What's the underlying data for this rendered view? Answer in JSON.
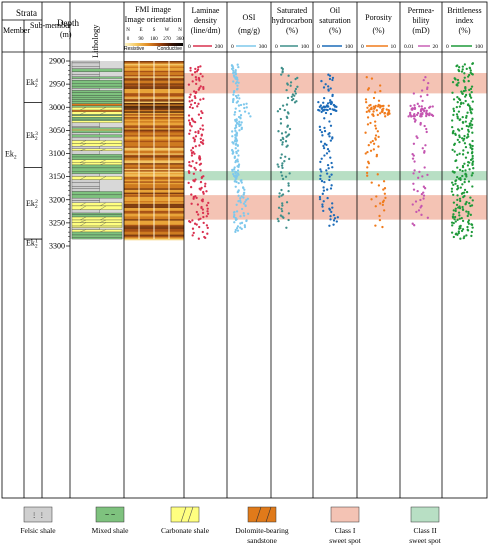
{
  "header": {
    "strata": "Strata",
    "member": "Member",
    "submember": "Sub-member",
    "depth": "Depth",
    "depth_unit": "(m)",
    "lithology": "Lithology",
    "fmi_title": "FMI image",
    "fmi_subtitle": "Image orientation",
    "fmi_dirs": [
      "N",
      "E",
      "S",
      "W",
      "N"
    ],
    "fmi_angles": [
      "0",
      "90",
      "180",
      "270",
      "360"
    ],
    "fmi_resistive": "Resistive",
    "fmi_conductive": "Conductive"
  },
  "tracks": [
    {
      "id": "laminae",
      "label": "Laminae",
      "label2": "density",
      "unit": "(line/dm)",
      "min": "0",
      "max": "200",
      "color": "#d9304f"
    },
    {
      "id": "osi",
      "label": "OSI",
      "label2": "",
      "unit": "(mg/g)",
      "min": "0",
      "max": "300",
      "color": "#7ec8ec"
    },
    {
      "id": "sat_hc",
      "label": "Saturated",
      "label2": "hydrocarbon",
      "unit": "(%)",
      "min": "0",
      "max": "100",
      "color": "#3f8f8a"
    },
    {
      "id": "oil_sat",
      "label": "Oil",
      "label2": "saturation",
      "unit": "(%)",
      "min": "0",
      "max": "100",
      "color": "#1c6bb8"
    },
    {
      "id": "porosity",
      "label": "Porosity",
      "label2": "",
      "unit": "(%)",
      "min": "0",
      "max": "10",
      "color": "#f07b1c"
    },
    {
      "id": "perm",
      "label": "Permea-",
      "label2": "bility",
      "unit": "(mD)",
      "min": "0.01",
      "max": "20",
      "color": "#c455b0"
    },
    {
      "id": "brittle",
      "label": "Brittleness",
      "label2": "index",
      "unit": "(%)",
      "min": "0",
      "max": "100",
      "color": "#1f9a3a"
    }
  ],
  "depth_ticks": [
    "2900",
    "2950",
    "3000",
    "3050",
    "3100",
    "3150",
    "3200",
    "3250",
    "3300"
  ],
  "member_label": "Ek",
  "member_sub": "2",
  "submembers": [
    {
      "label": "Ek",
      "sub": "2",
      "sup": "4",
      "top": 2900,
      "bottom": 2990
    },
    {
      "label": "Ek",
      "sub": "2",
      "sup": "3",
      "top": 2990,
      "bottom": 3130
    },
    {
      "label": "Ek",
      "sub": "2",
      "sup": "2",
      "top": 3130,
      "bottom": 3285
    },
    {
      "label": "Ek",
      "sub": "2",
      "sup": "1",
      "top": 3285,
      "bottom": 3305
    }
  ],
  "sweet_spots": [
    {
      "class": "I",
      "top": 2926,
      "bottom": 2970
    },
    {
      "class": "II",
      "top": 3138,
      "bottom": 3158
    },
    {
      "class": "I",
      "top": 3190,
      "bottom": 3243
    }
  ],
  "legend": [
    {
      "name": "felsic",
      "label": "Felsic shale",
      "label2": "",
      "fill": "#cfcfcf"
    },
    {
      "name": "mixed",
      "label": "Mixed shale",
      "label2": "",
      "fill": "#7ec27e"
    },
    {
      "name": "carbonate",
      "label": "Carbonate shale",
      "label2": "",
      "fill": "#ffff80"
    },
    {
      "name": "dolomite",
      "label": "Dolomite-bearing",
      "label2": "sandstone",
      "fill": "#e07a1a"
    },
    {
      "name": "class1",
      "label": "Class I",
      "label2": "sweet spot",
      "fill": "#f4c3b4"
    },
    {
      "name": "class2",
      "label": "Class II",
      "label2": "sweet spot",
      "fill": "#b8dfc4"
    }
  ],
  "colors": {
    "class1": "#f4c3b4",
    "class2": "#b8dfc4",
    "felsic": "#cfcfcf",
    "mixed": "#7ec27e",
    "carbonate": "#ffff80",
    "dolomite": "#e07a1a"
  }
}
